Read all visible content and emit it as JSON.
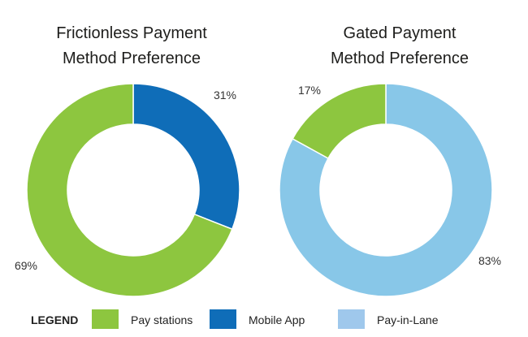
{
  "colors": {
    "pay_stations": "#8dc63f",
    "mobile_app": "#0f6db8",
    "pay_in_lane_slice": "#88c7e8",
    "pay_in_lane_legend": "#9fc8ec"
  },
  "chart_data": [
    {
      "type": "pie",
      "title_lines": [
        "Frictionless Payment",
        "Method Preference"
      ],
      "style": "donut",
      "slices": [
        {
          "label": "Mobile App",
          "value": 31,
          "value_label": "31%"
        },
        {
          "label": "Pay stations",
          "value": 69,
          "value_label": "69%"
        }
      ]
    },
    {
      "type": "pie",
      "title_lines": [
        "Gated Payment",
        "Method Preference"
      ],
      "style": "donut",
      "slices": [
        {
          "label": "Pay-in-Lane",
          "value": 83,
          "value_label": "83%"
        },
        {
          "label": "Pay stations",
          "value": 17,
          "value_label": "17%"
        }
      ]
    }
  ],
  "legend": {
    "heading": "LEGEND",
    "items": [
      {
        "label": "Pay stations",
        "color_key": "pay_stations"
      },
      {
        "label": "Mobile App",
        "color_key": "mobile_app"
      },
      {
        "label": "Pay-in-Lane",
        "color_key": "pay_in_lane_legend"
      }
    ]
  }
}
